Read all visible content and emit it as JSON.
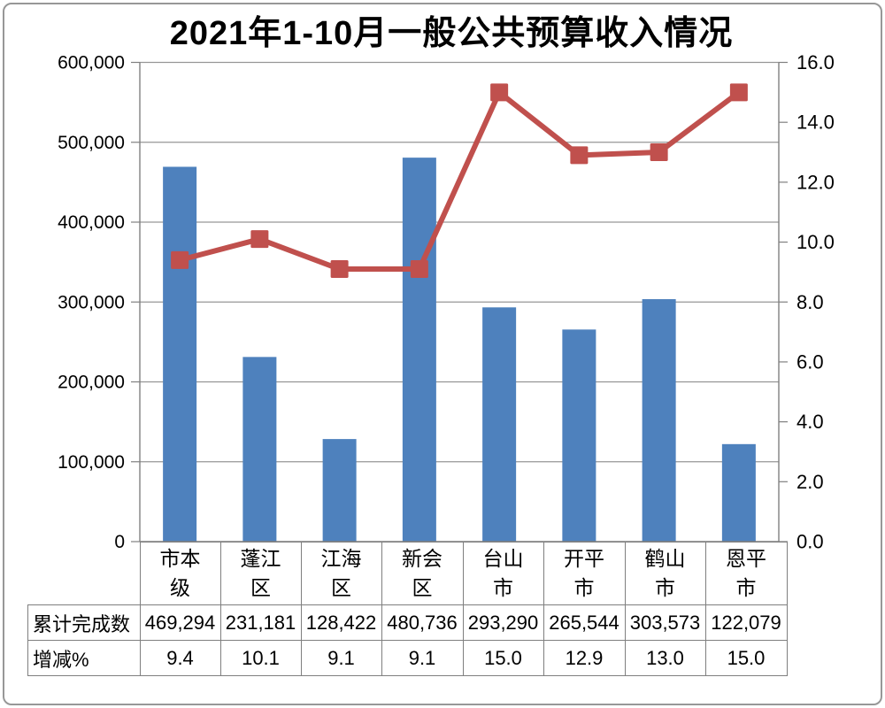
{
  "title": "2021年1-10月一般公共预算收入情况",
  "colors": {
    "bar": "#4E81BD",
    "line": "#C0504D",
    "gridline": "#969696",
    "axis": "#808080",
    "table_border": "#7f7f7f"
  },
  "chart_data": {
    "type": "bar",
    "subtype": "combo-bar-line",
    "title": "2021年1-10月一般公共预算收入情况",
    "categories": [
      "市本级",
      "蓬江区",
      "江海区",
      "新会区",
      "台山市",
      "开平市",
      "鹤山市",
      "恩平市"
    ],
    "series": [
      {
        "name": "累计完成数",
        "type": "bar",
        "axis": "left",
        "color": "#4E81BD",
        "values": [
          469294,
          231181,
          128422,
          480736,
          293290,
          265544,
          303573,
          122079
        ]
      },
      {
        "name": "增减%",
        "type": "line",
        "axis": "right",
        "color": "#C0504D",
        "values": [
          9.4,
          10.1,
          9.1,
          9.1,
          15.0,
          12.9,
          13.0,
          15.0
        ]
      }
    ],
    "left_axis": {
      "min": 0,
      "max": 600000,
      "step": 100000,
      "tick_labels": [
        "0",
        "100,000",
        "200,000",
        "300,000",
        "400,000",
        "500,000",
        "600,000"
      ]
    },
    "right_axis": {
      "min": 0.0,
      "max": 16.0,
      "step": 2.0,
      "tick_labels": [
        "0.0",
        "2.0",
        "4.0",
        "6.0",
        "8.0",
        "10.0",
        "12.0",
        "14.0",
        "16.0"
      ]
    },
    "grid": true,
    "legend": "none"
  },
  "table": {
    "rows": [
      {
        "label": "累计完成数",
        "values": [
          "469,294",
          "231,181",
          "128,422",
          "480,736",
          "293,290",
          "265,544",
          "303,573",
          "122,079"
        ]
      },
      {
        "label": "增减%",
        "values": [
          "9.4",
          "10.1",
          "9.1",
          "9.1",
          "15.0",
          "12.9",
          "13.0",
          "15.0"
        ]
      }
    ]
  }
}
